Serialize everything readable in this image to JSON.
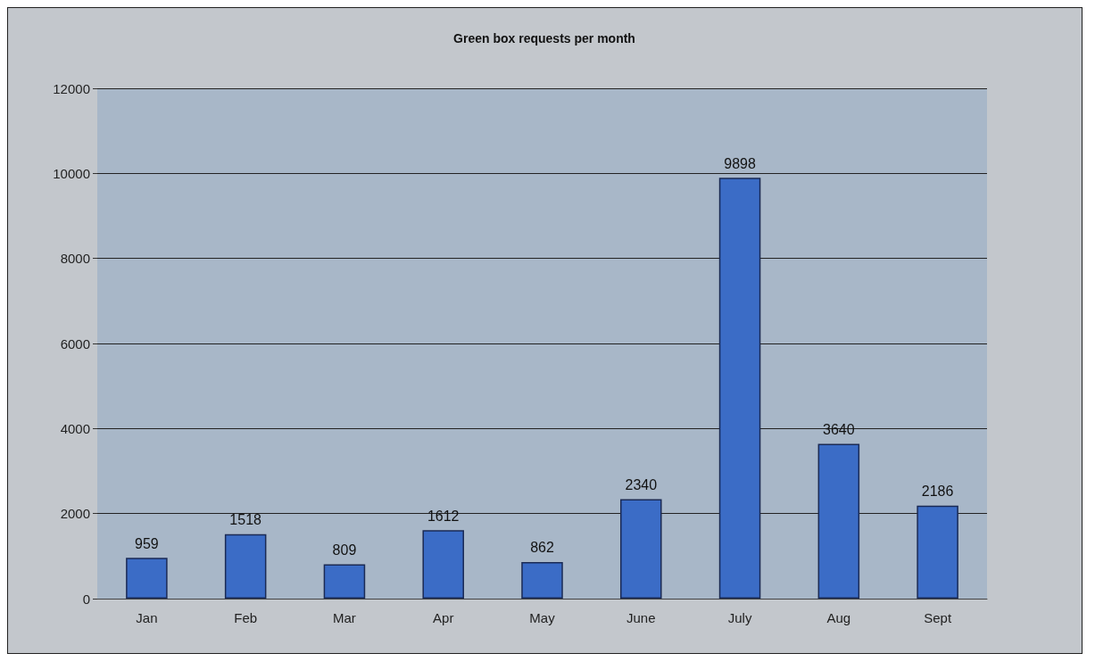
{
  "chart_data": {
    "type": "bar",
    "title": "Green box requests per month",
    "categories": [
      "Jan",
      "Feb",
      "Mar",
      "Apr",
      "May",
      "June",
      "July",
      "Aug",
      "Sept"
    ],
    "values": [
      959,
      1518,
      809,
      1612,
      862,
      2340,
      9898,
      3640,
      2186
    ],
    "color": "#3b6cc6",
    "ylim": [
      0,
      12000
    ],
    "yticks": [
      0,
      2000,
      4000,
      6000,
      8000,
      10000,
      12000
    ],
    "grid": "y",
    "data_labels": true
  }
}
